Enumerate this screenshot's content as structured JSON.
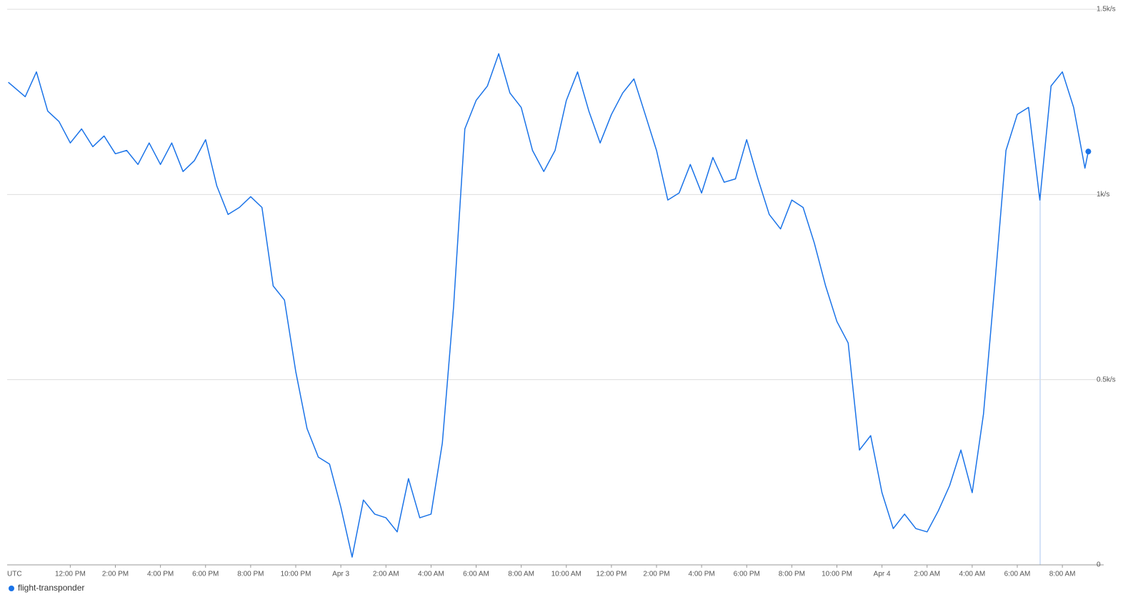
{
  "chart_data": {
    "type": "line",
    "x_label": "UTC",
    "x": [
      -14.75,
      -14,
      -13.5,
      -13,
      -12.5,
      -12,
      -11.5,
      -11,
      -10.5,
      -10,
      -9.5,
      -9,
      -8.5,
      -8,
      -7.5,
      -7,
      -6.5,
      -6,
      -5.5,
      -5,
      -4.5,
      -4,
      -3.5,
      -3,
      -2.5,
      -2,
      -1.5,
      -1,
      -0.5,
      0,
      0.5,
      1,
      1.5,
      2,
      2.5,
      3,
      3.5,
      4,
      4.5,
      5,
      5.5,
      6,
      6.5,
      7,
      7.5,
      8,
      8.5,
      9,
      9.5,
      10,
      10.5,
      11,
      11.5,
      12,
      12.5,
      13,
      13.5,
      14,
      14.5,
      15,
      15.5,
      16,
      16.5,
      17,
      17.5,
      18,
      18.5,
      19,
      19.5,
      20,
      20.5,
      21,
      21.5,
      22,
      22.5,
      23,
      23.5,
      24,
      24.5,
      25,
      25.5,
      26,
      26.5,
      27,
      27.5,
      28,
      28.5,
      29,
      29.5,
      30,
      30.5,
      31,
      31.5,
      32,
      32.5,
      33,
      33.15
    ],
    "series": [
      {
        "name": "flight-transponder",
        "color": "#1a73e8",
        "values": [
          1303,
          1264,
          1331,
          1225,
          1197,
          1139,
          1177,
          1129,
          1158,
          1110,
          1119,
          1081,
          1139,
          1081,
          1139,
          1062,
          1091,
          1148,
          1023,
          946,
          965,
          994,
          965,
          753,
          715,
          522,
          368,
          291,
          272,
          156,
          21,
          175,
          137,
          127,
          89,
          233,
          127,
          137,
          329,
          696,
          1177,
          1254,
          1293,
          1380,
          1274,
          1235,
          1119,
          1062,
          1119,
          1254,
          1331,
          1225,
          1139,
          1216,
          1274,
          1312,
          1216,
          1119,
          985,
          1004,
          1081,
          1004,
          1100,
          1033,
          1042,
          1148,
          1042,
          946,
          907,
          985,
          965,
          869,
          753,
          657,
          599,
          310,
          349,
          195,
          98,
          137,
          98,
          89,
          146,
          214,
          310,
          195,
          407,
          753,
          1119,
          1216,
          1235,
          985,
          1293,
          1331,
          1235,
          1071,
          1116
        ]
      }
    ],
    "xlim": [
      -14.8,
      33.2
    ],
    "xticks": [
      {
        "value": -12,
        "label": "12:00 PM"
      },
      {
        "value": -10,
        "label": "2:00 PM"
      },
      {
        "value": -8,
        "label": "4:00 PM"
      },
      {
        "value": -6,
        "label": "6:00 PM"
      },
      {
        "value": -4,
        "label": "8:00 PM"
      },
      {
        "value": -2,
        "label": "10:00 PM"
      },
      {
        "value": 0,
        "label": "Apr 3"
      },
      {
        "value": 2,
        "label": "2:00 AM"
      },
      {
        "value": 4,
        "label": "4:00 AM"
      },
      {
        "value": 6,
        "label": "6:00 AM"
      },
      {
        "value": 8,
        "label": "8:00 AM"
      },
      {
        "value": 10,
        "label": "10:00 AM"
      },
      {
        "value": 12,
        "label": "12:00 PM"
      },
      {
        "value": 14,
        "label": "2:00 PM"
      },
      {
        "value": 16,
        "label": "4:00 PM"
      },
      {
        "value": 18,
        "label": "6:00 PM"
      },
      {
        "value": 20,
        "label": "8:00 PM"
      },
      {
        "value": 22,
        "label": "10:00 PM"
      },
      {
        "value": 24,
        "label": "Apr 4"
      },
      {
        "value": 26,
        "label": "2:00 AM"
      },
      {
        "value": 28,
        "label": "4:00 AM"
      },
      {
        "value": 30,
        "label": "6:00 AM"
      },
      {
        "value": 32,
        "label": "8:00 AM"
      }
    ],
    "ylim": [
      0,
      1500
    ],
    "yticks": [
      0,
      {
        "value": 500,
        "label": "0.5k/s"
      },
      {
        "value": 1000,
        "label": "1k/s"
      },
      {
        "value": 1500,
        "label": "1.5k/s"
      }
    ],
    "grid": true
  }
}
